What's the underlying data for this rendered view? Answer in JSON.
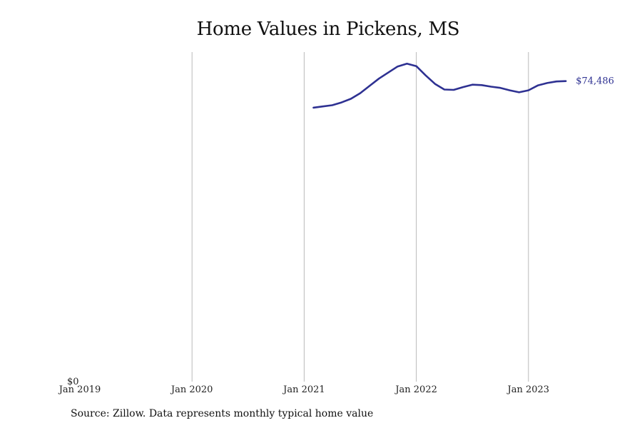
{
  "title": "Home Values in Pickens, MS",
  "source": "Source: Zillow. Data represents monthly typical home value",
  "colors": {
    "line": "#2e3192",
    "grid": "#b9b9b9",
    "text": "#222222"
  },
  "chart_data": {
    "type": "line",
    "title": "Home Values in Pickens, MS",
    "xlabel": "",
    "ylabel": "",
    "x_ticks": [
      "Jan 2019",
      "Jan 2020",
      "Jan 2021",
      "Jan 2022",
      "Jan 2023"
    ],
    "y_ticks": [
      "$0"
    ],
    "ylim": [
      0,
      81500
    ],
    "xlim": [
      "2019-01",
      "2023-12"
    ],
    "grid": "vertical",
    "end_label": "$74,486",
    "series": [
      {
        "x": [
          "2021-02",
          "2021-03",
          "2021-04",
          "2021-05",
          "2021-06",
          "2021-07",
          "2021-08",
          "2021-09",
          "2021-10",
          "2021-11",
          "2021-12",
          "2022-01",
          "2022-02",
          "2022-03",
          "2022-04",
          "2022-05",
          "2022-06",
          "2022-07",
          "2022-08",
          "2022-09",
          "2022-10",
          "2022-11",
          "2022-12",
          "2023-01",
          "2023-02",
          "2023-03",
          "2023-04",
          "2023-05"
        ],
        "values": [
          67900,
          68200,
          68500,
          69200,
          70100,
          71500,
          73300,
          75100,
          76600,
          78100,
          78800,
          78200,
          75900,
          73800,
          72400,
          72300,
          73000,
          73600,
          73500,
          73100,
          72800,
          72200,
          71700,
          72200,
          73400,
          74000,
          74400,
          74486
        ]
      }
    ]
  }
}
